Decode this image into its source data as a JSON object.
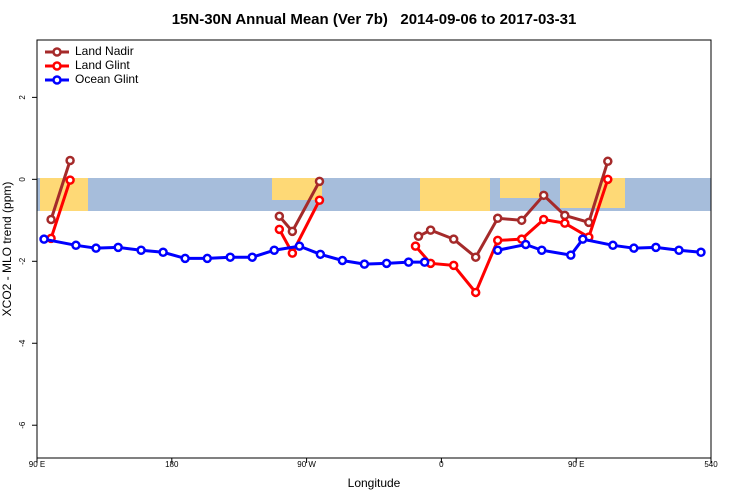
{
  "chart_data": {
    "type": "line",
    "title": "15N-30N Annual Mean (Ver 7b)   2014-09-06 to 2017-03-31",
    "xlabel": "Longitude",
    "ylabel": "XCO2 - MLO trend (ppm)",
    "xlim": [
      90,
      540
    ],
    "xticks": [
      {
        "value": 90,
        "label": "90 E"
      },
      180,
      {
        "value": 270,
        "label": "90 W"
      },
      {
        "value": 360,
        "label": "0"
      },
      {
        "value": 450,
        "label": "90 E"
      },
      540
    ],
    "ylim": [
      -6.8,
      3.4
    ],
    "yticks": [
      -6,
      -4,
      -2,
      0,
      2
    ],
    "grid": false,
    "legend": "top-left",
    "series": [
      {
        "name": "Land Nadir",
        "color": "#a52a2a",
        "x": [
          99.4,
          112.1,
          null,
          251.8,
          260.5,
          278.6,
          null,
          344.7,
          352.8,
          368.2,
          382.9,
          397.6,
          413.6,
          428.3,
          442.4,
          458.4,
          471.1
        ],
        "values": [
          -0.98,
          0.46,
          null,
          -0.9,
          -1.27,
          -0.05,
          null,
          -1.39,
          -1.24,
          -1.46,
          -1.9,
          -0.95,
          -1.0,
          -0.39,
          -0.88,
          -1.05,
          0.44
        ]
      },
      {
        "name": "Land Glint",
        "color": "#ff0000",
        "x": [
          99.4,
          112.1,
          null,
          251.8,
          260.5,
          278.6,
          null,
          342.7,
          352.8,
          368.2,
          382.9,
          397.6,
          413.6,
          428.3,
          442.4,
          458.4,
          471.1
        ],
        "values": [
          -1.44,
          -0.02,
          null,
          -1.22,
          -1.8,
          -0.51,
          null,
          -1.63,
          -2.05,
          -2.1,
          -2.76,
          -1.49,
          -1.46,
          -0.98,
          -1.07,
          -1.41,
          0.0
        ]
      },
      {
        "name": "Ocean Glint",
        "color": "#0000ff",
        "x": [
          94.7,
          116,
          129.4,
          144.2,
          159.5,
          174.2,
          188.9,
          203.7,
          219,
          233.7,
          248.4,
          265.2,
          279.2,
          293.9,
          308.6,
          323.4,
          338.1,
          348.8,
          null,
          397.6,
          416.3,
          427,
          446.4,
          454.4,
          474.5,
          488.5,
          503.2,
          518.6,
          533.3
        ],
        "values": [
          -1.46,
          -1.61,
          -1.68,
          -1.66,
          -1.73,
          -1.78,
          -1.93,
          -1.93,
          -1.9,
          -1.9,
          -1.73,
          -1.63,
          -1.83,
          -1.98,
          -2.07,
          -2.05,
          -2.02,
          -2.02,
          null,
          -1.73,
          -1.59,
          -1.73,
          -1.85,
          -1.46,
          -1.61,
          -1.68,
          -1.66,
          -1.73,
          -1.78
        ]
      }
    ]
  }
}
